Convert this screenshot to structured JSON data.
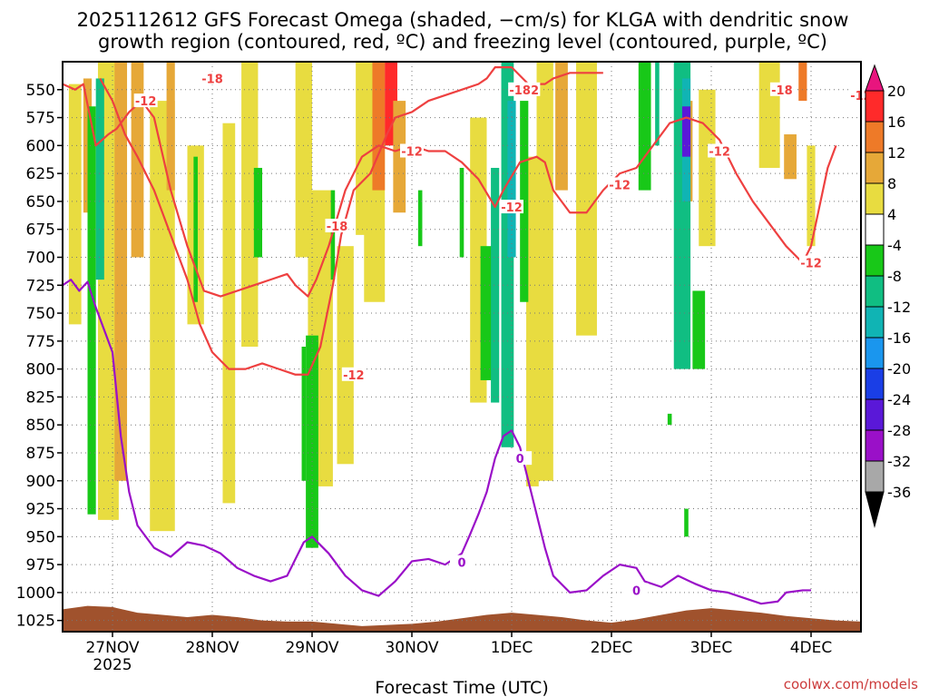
{
  "chart_data": {
    "type": "heatmap",
    "title_line1": "2025112612 GFS Forecast Omega (shaded, −cm/s) for KLGA with dendritic snow",
    "title_line2": "growth region (contoured, red, ºC) and freezing level (contoured, purple, ºC)",
    "xlabel": "Forecast Time (UTC)",
    "ylabel": "",
    "credit": "coolwx.com/models",
    "x_range_hours": [
      -12,
      180
    ],
    "y_range_hpa": [
      1035,
      525
    ],
    "x_ticks": [
      {
        "hour": 0,
        "label": "27NOV",
        "sublabel": "2025"
      },
      {
        "hour": 24,
        "label": "28NOV"
      },
      {
        "hour": 48,
        "label": "29NOV"
      },
      {
        "hour": 72,
        "label": "30NOV"
      },
      {
        "hour": 96,
        "label": "1DEC"
      },
      {
        "hour": 120,
        "label": "2DEC"
      },
      {
        "hour": 144,
        "label": "3DEC"
      },
      {
        "hour": 168,
        "label": "4DEC"
      }
    ],
    "y_ticks": [
      "550",
      "575",
      "600",
      "625",
      "650",
      "675",
      "700",
      "725",
      "750",
      "775",
      "800",
      "825",
      "850",
      "875",
      "900",
      "925",
      "950",
      "975",
      "1000",
      "1025"
    ],
    "colorbar": {
      "bins": [
        {
          "lo": 20,
          "hi": 24,
          "color": "#e8157e"
        },
        {
          "lo": 16,
          "hi": 20,
          "color": "#ff2a2a"
        },
        {
          "lo": 12,
          "hi": 16,
          "color": "#ee7a28"
        },
        {
          "lo": 8,
          "hi": 12,
          "color": "#e6a838"
        },
        {
          "lo": 4,
          "hi": 8,
          "color": "#e8dc40"
        },
        {
          "lo": -4,
          "hi": 4,
          "color": "#ffffff"
        },
        {
          "lo": -8,
          "hi": -4,
          "color": "#18c818"
        },
        {
          "lo": -12,
          "hi": -8,
          "color": "#10be82"
        },
        {
          "lo": -16,
          "hi": -12,
          "color": "#10b4b4"
        },
        {
          "lo": -20,
          "hi": -16,
          "color": "#1a96ee"
        },
        {
          "lo": -24,
          "hi": -20,
          "color": "#1a3ee6"
        },
        {
          "lo": -28,
          "hi": -24,
          "color": "#5a18d8"
        },
        {
          "lo": -32,
          "hi": -28,
          "color": "#9a10c8"
        },
        {
          "lo": -36,
          "hi": -32,
          "color": "#a8a8a8"
        },
        {
          "lo": -40,
          "hi": -36,
          "color": "#000000"
        }
      ],
      "labels": [
        "20",
        "16",
        "12",
        "8",
        "4",
        "-4",
        "-8",
        "-12",
        "-16",
        "-20",
        "-24",
        "-28",
        "-32",
        "-36"
      ]
    },
    "omega_regions": [
      {
        "hour": -9,
        "w": 3,
        "p1": 545,
        "p2": 760,
        "omega": 5
      },
      {
        "hour": -6,
        "w": 2,
        "p1": 540,
        "p2": 660,
        "omega": 10
      },
      {
        "hour": -1,
        "w": 5,
        "p1": 525,
        "p2": 935,
        "omega": 5
      },
      {
        "hour": 2,
        "w": 3,
        "p1": 525,
        "p2": 900,
        "omega": 10
      },
      {
        "hour": 6,
        "w": 3,
        "p1": 525,
        "p2": 700,
        "omega": 10
      },
      {
        "hour": 12,
        "w": 6,
        "p1": 560,
        "p2": 945,
        "omega": 5
      },
      {
        "hour": 14,
        "w": 2,
        "p1": 525,
        "p2": 640,
        "omega": 10
      },
      {
        "hour": 20,
        "w": 4,
        "p1": 600,
        "p2": 760,
        "omega": 5
      },
      {
        "hour": 28,
        "w": 3,
        "p1": 580,
        "p2": 920,
        "omega": 5
      },
      {
        "hour": 33,
        "w": 4,
        "p1": 525,
        "p2": 780,
        "omega": 5
      },
      {
        "hour": 46,
        "w": 4,
        "p1": 525,
        "p2": 700,
        "omega": 5
      },
      {
        "hour": 50,
        "w": 6,
        "p1": 640,
        "p2": 905,
        "omega": 5
      },
      {
        "hour": 56,
        "w": 4,
        "p1": 690,
        "p2": 885,
        "omega": 5
      },
      {
        "hour": 60,
        "w": 3,
        "p1": 525,
        "p2": 680,
        "omega": 5
      },
      {
        "hour": 63,
        "w": 5,
        "p1": 525,
        "p2": 740,
        "omega": 5
      },
      {
        "hour": 64,
        "w": 3,
        "p1": 525,
        "p2": 640,
        "omega": 15
      },
      {
        "hour": 67,
        "w": 3,
        "p1": 525,
        "p2": 600,
        "omega": 18
      },
      {
        "hour": 69,
        "w": 3,
        "p1": 560,
        "p2": 660,
        "omega": 10
      },
      {
        "hour": 88,
        "w": 4,
        "p1": 575,
        "p2": 830,
        "omega": 5
      },
      {
        "hour": 101,
        "w": 3,
        "p1": 610,
        "p2": 905,
        "omega": 5
      },
      {
        "hour": 104,
        "w": 4,
        "p1": 525,
        "p2": 900,
        "omega": 5
      },
      {
        "hour": 108,
        "w": 3,
        "p1": 525,
        "p2": 640,
        "omega": 10
      },
      {
        "hour": 114,
        "w": 5,
        "p1": 525,
        "p2": 770,
        "omega": 5
      },
      {
        "hour": 138,
        "w": 3,
        "p1": 560,
        "p2": 650,
        "omega": 10
      },
      {
        "hour": 143,
        "w": 4,
        "p1": 550,
        "p2": 690,
        "omega": 5
      },
      {
        "hour": 158,
        "w": 5,
        "p1": 525,
        "p2": 620,
        "omega": 5
      },
      {
        "hour": 163,
        "w": 3,
        "p1": 590,
        "p2": 630,
        "omega": 10
      },
      {
        "hour": 166,
        "w": 2,
        "p1": 525,
        "p2": 560,
        "omega": 13
      },
      {
        "hour": 168,
        "w": 2,
        "p1": 600,
        "p2": 690,
        "omega": 5
      },
      {
        "hour": -5,
        "w": 2,
        "p1": 565,
        "p2": 930,
        "omega": -6
      },
      {
        "hour": -3,
        "w": 2,
        "p1": 540,
        "p2": 720,
        "omega": -10
      },
      {
        "hour": 20,
        "w": 1,
        "p1": 610,
        "p2": 740,
        "omega": -6
      },
      {
        "hour": 35,
        "w": 2,
        "p1": 620,
        "p2": 700,
        "omega": -6
      },
      {
        "hour": 46,
        "w": 1,
        "p1": 780,
        "p2": 900,
        "omega": -6
      },
      {
        "hour": 48,
        "w": 3,
        "p1": 770,
        "p2": 960,
        "omega": -6
      },
      {
        "hour": 53,
        "w": 1,
        "p1": 640,
        "p2": 720,
        "omega": -6
      },
      {
        "hour": 74,
        "w": 1,
        "p1": 640,
        "p2": 690,
        "omega": -6
      },
      {
        "hour": 84,
        "w": 1,
        "p1": 620,
        "p2": 700,
        "omega": -6
      },
      {
        "hour": 90,
        "w": 3,
        "p1": 690,
        "p2": 810,
        "omega": -8
      },
      {
        "hour": 92,
        "w": 2,
        "p1": 620,
        "p2": 830,
        "omega": -10
      },
      {
        "hour": 95,
        "w": 3,
        "p1": 525,
        "p2": 870,
        "omega": -10
      },
      {
        "hour": 96,
        "w": 2,
        "p1": 560,
        "p2": 700,
        "omega": -14
      },
      {
        "hour": 99,
        "w": 2,
        "p1": 560,
        "p2": 740,
        "omega": -6
      },
      {
        "hour": 128,
        "w": 3,
        "p1": 525,
        "p2": 640,
        "omega": -6
      },
      {
        "hour": 131,
        "w": 1,
        "p1": 525,
        "p2": 600,
        "omega": -10
      },
      {
        "hour": 137,
        "w": 4,
        "p1": 525,
        "p2": 800,
        "omega": -10
      },
      {
        "hour": 138,
        "w": 2,
        "p1": 540,
        "p2": 650,
        "omega": -14
      },
      {
        "hour": 138,
        "w": 2,
        "p1": 565,
        "p2": 610,
        "omega": -26
      },
      {
        "hour": 141,
        "w": 3,
        "p1": 730,
        "p2": 800,
        "omega": -6
      },
      {
        "hour": 134,
        "w": 1,
        "p1": 840,
        "p2": 850,
        "omega": -6
      },
      {
        "hour": 138,
        "w": 1,
        "p1": 925,
        "p2": 950,
        "omega": -6
      }
    ],
    "dgz_label": "-12",
    "dgz_label_other": "-18",
    "freezing_label": "0",
    "dgz_contour_12": [
      [
        -12,
        545
      ],
      [
        -9,
        550
      ],
      [
        -7,
        545
      ],
      [
        -4,
        600
      ],
      [
        -1,
        590
      ],
      [
        1,
        585
      ],
      [
        4,
        570
      ],
      [
        7,
        560
      ],
      [
        10,
        575
      ],
      [
        14,
        640
      ],
      [
        18,
        690
      ],
      [
        22,
        730
      ],
      [
        26,
        735
      ],
      [
        30,
        730
      ],
      [
        34,
        725
      ],
      [
        38,
        720
      ],
      [
        42,
        715
      ],
      [
        44,
        725
      ],
      [
        47,
        735
      ],
      [
        49,
        720
      ],
      [
        52,
        690
      ],
      [
        56,
        640
      ],
      [
        60,
        610
      ],
      [
        64,
        600
      ],
      [
        68,
        605
      ],
      [
        72,
        600
      ],
      [
        76,
        605
      ],
      [
        80,
        605
      ],
      [
        84,
        615
      ],
      [
        88,
        630
      ],
      [
        92,
        655
      ],
      [
        94,
        640
      ],
      [
        98,
        615
      ],
      [
        102,
        610
      ],
      [
        104,
        615
      ],
      [
        106,
        640
      ],
      [
        110,
        660
      ],
      [
        114,
        660
      ],
      [
        118,
        640
      ],
      [
        122,
        625
      ],
      [
        126,
        620
      ],
      [
        128,
        610
      ],
      [
        130,
        600
      ],
      [
        134,
        580
      ],
      [
        138,
        575
      ],
      [
        142,
        580
      ],
      [
        146,
        595
      ],
      [
        150,
        625
      ],
      [
        154,
        650
      ],
      [
        158,
        670
      ],
      [
        162,
        690
      ],
      [
        166,
        705
      ],
      [
        168,
        690
      ],
      [
        170,
        655
      ],
      [
        172,
        620
      ],
      [
        174,
        600
      ]
    ],
    "dgz_contour_18": [
      [
        -3,
        540
      ],
      [
        0,
        560
      ],
      [
        3,
        590
      ],
      [
        6,
        610
      ],
      [
        10,
        640
      ],
      [
        14,
        680
      ],
      [
        18,
        720
      ],
      [
        21,
        760
      ],
      [
        24,
        785
      ],
      [
        28,
        800
      ],
      [
        32,
        800
      ],
      [
        36,
        795
      ],
      [
        40,
        800
      ],
      [
        44,
        805
      ],
      [
        47,
        805
      ],
      [
        50,
        780
      ],
      [
        53,
        725
      ],
      [
        55,
        680
      ],
      [
        58,
        640
      ],
      [
        62,
        625
      ],
      [
        66,
        590
      ],
      [
        68,
        575
      ],
      [
        72,
        570
      ],
      [
        76,
        560
      ],
      [
        80,
        555
      ],
      [
        84,
        550
      ],
      [
        88,
        545
      ],
      [
        90,
        540
      ],
      [
        92,
        530
      ],
      [
        96,
        530
      ],
      [
        100,
        545
      ],
      [
        104,
        545
      ],
      [
        106,
        540
      ],
      [
        110,
        535
      ],
      [
        114,
        535
      ],
      [
        118,
        535
      ]
    ],
    "freezing_contour_0": [
      [
        -12,
        725
      ],
      [
        -10,
        720
      ],
      [
        -8,
        730
      ],
      [
        -6,
        722
      ],
      [
        -4,
        745
      ],
      [
        -2,
        765
      ],
      [
        0,
        785
      ],
      [
        2,
        860
      ],
      [
        4,
        910
      ],
      [
        6,
        940
      ],
      [
        10,
        960
      ],
      [
        14,
        968
      ],
      [
        18,
        955
      ],
      [
        22,
        958
      ],
      [
        26,
        965
      ],
      [
        30,
        978
      ],
      [
        34,
        985
      ],
      [
        38,
        990
      ],
      [
        42,
        985
      ],
      [
        46,
        955
      ],
      [
        48,
        950
      ],
      [
        52,
        965
      ],
      [
        56,
        985
      ],
      [
        60,
        998
      ],
      [
        64,
        1003
      ],
      [
        68,
        990
      ],
      [
        72,
        972
      ],
      [
        76,
        970
      ],
      [
        80,
        975
      ],
      [
        84,
        965
      ],
      [
        86,
        948
      ],
      [
        88,
        930
      ],
      [
        90,
        910
      ],
      [
        92,
        880
      ],
      [
        94,
        860
      ],
      [
        96,
        855
      ],
      [
        98,
        870
      ],
      [
        100,
        900
      ],
      [
        102,
        930
      ],
      [
        104,
        960
      ],
      [
        106,
        985
      ],
      [
        110,
        1000
      ],
      [
        114,
        998
      ],
      [
        118,
        985
      ],
      [
        122,
        975
      ],
      [
        126,
        978
      ],
      [
        128,
        990
      ],
      [
        132,
        995
      ],
      [
        136,
        985
      ],
      [
        140,
        992
      ],
      [
        144,
        998
      ],
      [
        148,
        1000
      ],
      [
        152,
        1005
      ],
      [
        156,
        1010
      ],
      [
        160,
        1008
      ],
      [
        162,
        1000
      ],
      [
        166,
        998
      ],
      [
        168,
        998
      ]
    ],
    "surface_pressure": [
      [
        -12,
        1015
      ],
      [
        -6,
        1012
      ],
      [
        0,
        1013
      ],
      [
        6,
        1018
      ],
      [
        12,
        1020
      ],
      [
        18,
        1022
      ],
      [
        24,
        1020
      ],
      [
        30,
        1022
      ],
      [
        36,
        1025
      ],
      [
        42,
        1026
      ],
      [
        48,
        1026
      ],
      [
        54,
        1028
      ],
      [
        60,
        1030
      ],
      [
        66,
        1029
      ],
      [
        72,
        1028
      ],
      [
        78,
        1026
      ],
      [
        84,
        1023
      ],
      [
        90,
        1020
      ],
      [
        96,
        1018
      ],
      [
        102,
        1020
      ],
      [
        108,
        1022
      ],
      [
        114,
        1025
      ],
      [
        120,
        1027
      ],
      [
        126,
        1024
      ],
      [
        132,
        1020
      ],
      [
        138,
        1016
      ],
      [
        144,
        1014
      ],
      [
        150,
        1016
      ],
      [
        156,
        1018
      ],
      [
        162,
        1021
      ],
      [
        168,
        1023
      ],
      [
        174,
        1025
      ],
      [
        180,
        1026
      ]
    ]
  }
}
